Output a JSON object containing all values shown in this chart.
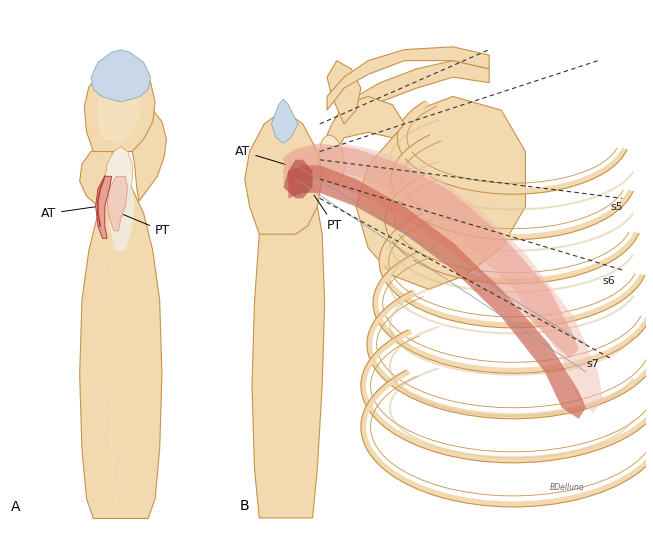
{
  "background": "#ffffff",
  "bone_fill": "#f2d9b0",
  "bone_edge": "#c8924a",
  "bone_light": "#f8e8cc",
  "bone_dark": "#d4a060",
  "cartilage_fill": "#c8d8e8",
  "cartilage_edge": "#8aaabb",
  "muscle_red_light": "#e8a090",
  "muscle_red_mid": "#d07060",
  "muscle_red_dark": "#b04040",
  "muscle_pink": "#f0c0b0",
  "tendon_white": "#f5ede0",
  "label_color": "#111111",
  "dash_color": "#333333",
  "panel_A": "A",
  "panel_B": "B",
  "label_AT": "AT",
  "label_PT": "PT",
  "label_s5": "s5",
  "label_s6": "s6",
  "label_s7": "s7",
  "font_size": 9,
  "panel_font_size": 10
}
